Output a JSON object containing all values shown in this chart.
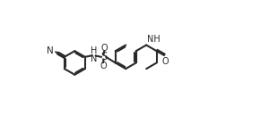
{
  "bg_color": "#ffffff",
  "line_color": "#2a2a2a",
  "line_width": 1.5,
  "font_size": 7.0,
  "fig_width": 2.9,
  "fig_height": 1.48,
  "dpi": 100,
  "xlim": [
    -1.0,
    9.5
  ],
  "ylim": [
    -0.5,
    4.5
  ]
}
